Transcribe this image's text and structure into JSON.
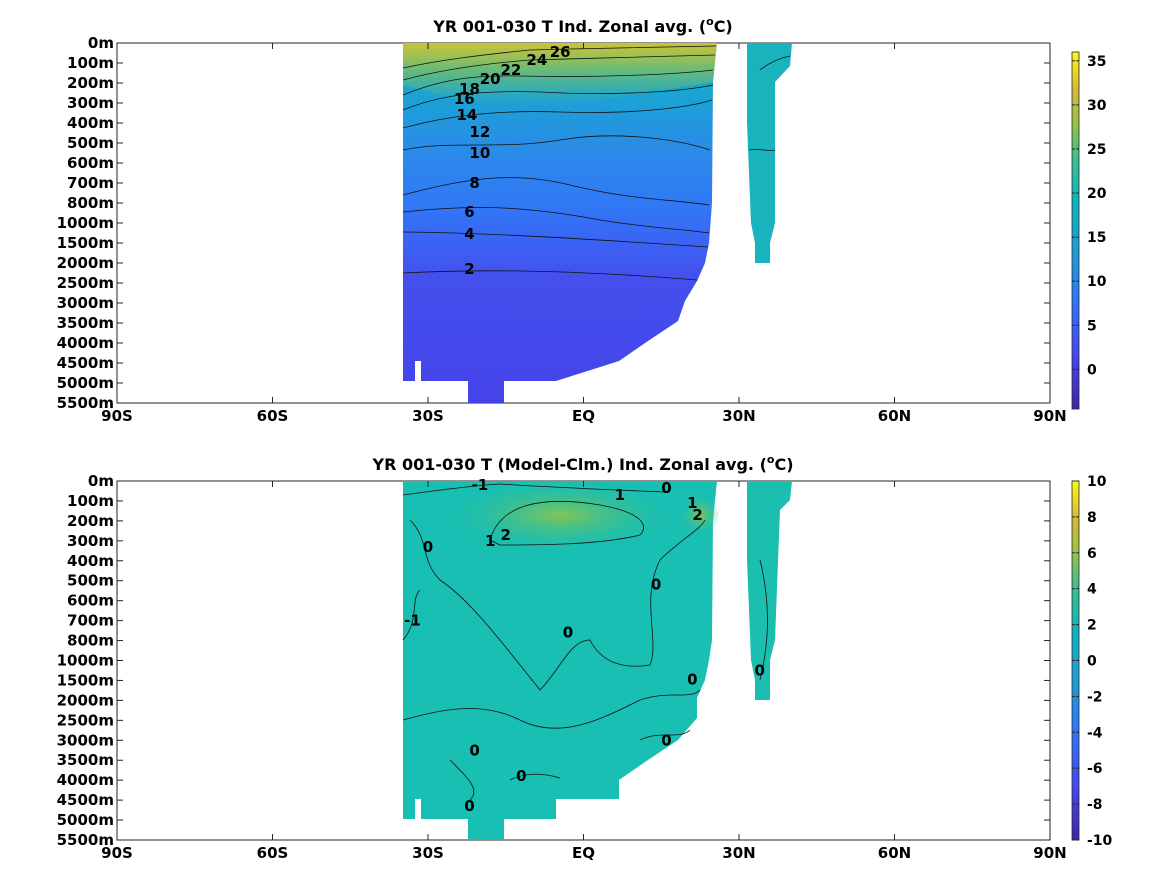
{
  "chart_data": [
    {
      "type": "heatmap",
      "title": "YR 001-030 T Ind. Zonal avg. (",
      "title_super": "o",
      "title_unit": "C)",
      "x_ticks": [
        "90S",
        "60S",
        "30S",
        "EQ",
        "30N",
        "60N",
        "90N"
      ],
      "x_values": [
        -90,
        -60,
        -30,
        0,
        30,
        60,
        90
      ],
      "y_ticks": [
        "0m",
        "100m",
        "200m",
        "300m",
        "400m",
        "500m",
        "600m",
        "700m",
        "800m",
        "1000m",
        "1500m",
        "2000m",
        "2500m",
        "3000m",
        "3500m",
        "4000m",
        "4500m",
        "5000m",
        "5500m"
      ],
      "colorbar": {
        "ticks": [
          "0",
          "5",
          "10",
          "15",
          "20",
          "25",
          "30",
          "35"
        ],
        "min": -4.5,
        "max": 36
      },
      "contour_labels": [
        {
          "text": "26",
          "lat": -4.5,
          "depth_idx": 0.45
        },
        {
          "text": "24",
          "lat": -9,
          "depth_idx": 0.85
        },
        {
          "text": "22",
          "lat": -14,
          "depth_idx": 1.35
        },
        {
          "text": "20",
          "lat": -18,
          "depth_idx": 1.8
        },
        {
          "text": "18",
          "lat": -22,
          "depth_idx": 2.3
        },
        {
          "text": "16",
          "lat": -23,
          "depth_idx": 2.8
        },
        {
          "text": "14",
          "lat": -22.5,
          "depth_idx": 3.6
        },
        {
          "text": "12",
          "lat": -20,
          "depth_idx": 4.45
        },
        {
          "text": "10",
          "lat": -20,
          "depth_idx": 5.5
        },
        {
          "text": "8",
          "lat": -21,
          "depth_idx": 7.0
        },
        {
          "text": "6",
          "lat": -22,
          "depth_idx": 8.45
        },
        {
          "text": "4",
          "lat": -22,
          "depth_idx": 9.55
        },
        {
          "text": "2",
          "lat": -22,
          "depth_idx": 11.3
        }
      ]
    },
    {
      "type": "heatmap",
      "title": "YR 001-030 T (Model-Clm.) Ind. Zonal avg. (",
      "title_super": "o",
      "title_unit": "C)",
      "x_ticks": [
        "90S",
        "60S",
        "30S",
        "EQ",
        "30N",
        "60N",
        "90N"
      ],
      "x_values": [
        -90,
        -60,
        -30,
        0,
        30,
        60,
        90
      ],
      "y_ticks": [
        "0m",
        "100m",
        "200m",
        "300m",
        "400m",
        "500m",
        "600m",
        "700m",
        "800m",
        "1000m",
        "1500m",
        "2000m",
        "2500m",
        "3000m",
        "3500m",
        "4000m",
        "4500m",
        "5000m",
        "5500m"
      ],
      "colorbar": {
        "ticks": [
          "-10",
          "-8",
          "-6",
          "-4",
          "-2",
          "0",
          "2",
          "4",
          "6",
          "8",
          "10"
        ],
        "min": -10,
        "max": 10
      },
      "contour_labels": [
        {
          "text": "-1",
          "lat": -20,
          "depth_idx": 0.2
        },
        {
          "text": "1",
          "lat": 7,
          "depth_idx": 0.7
        },
        {
          "text": "0",
          "lat": 16,
          "depth_idx": 0.35
        },
        {
          "text": "1",
          "lat": 21,
          "depth_idx": 1.1
        },
        {
          "text": "2",
          "lat": 22,
          "depth_idx": 1.7
        },
        {
          "text": "2",
          "lat": -15,
          "depth_idx": 2.7
        },
        {
          "text": "1",
          "lat": -18,
          "depth_idx": 3.0
        },
        {
          "text": "0",
          "lat": -30,
          "depth_idx": 3.3
        },
        {
          "text": "0",
          "lat": 14,
          "depth_idx": 5.2
        },
        {
          "text": "-1",
          "lat": -33,
          "depth_idx": 7.0
        },
        {
          "text": "0",
          "lat": -3,
          "depth_idx": 7.6
        },
        {
          "text": "0",
          "lat": 34,
          "depth_idx": 9.5
        },
        {
          "text": "0",
          "lat": 21,
          "depth_idx": 9.95
        },
        {
          "text": "0",
          "lat": -21,
          "depth_idx": 13.5
        },
        {
          "text": "0",
          "lat": 16,
          "depth_idx": 13.0
        },
        {
          "text": "0",
          "lat": -12,
          "depth_idx": 14.8
        },
        {
          "text": "0",
          "lat": -22,
          "depth_idx": 16.3
        }
      ]
    }
  ]
}
